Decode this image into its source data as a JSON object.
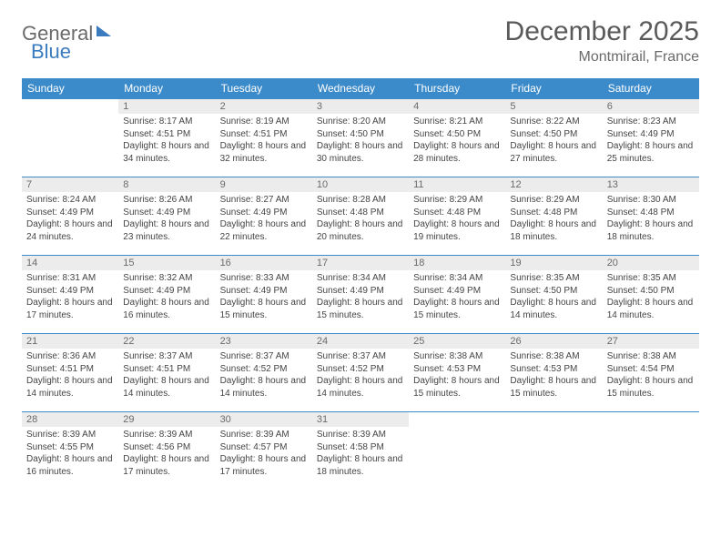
{
  "brand": {
    "part1": "General",
    "part2": "Blue"
  },
  "title": "December 2025",
  "subtitle": "Montmirail, France",
  "colors": {
    "header_bg": "#3b8aca",
    "header_text": "#ffffff",
    "daynum_bg": "#ececec",
    "border": "#3b8aca",
    "title_color": "#5a5a5a",
    "text_color": "#444444"
  },
  "weekdays": [
    "Sunday",
    "Monday",
    "Tuesday",
    "Wednesday",
    "Thursday",
    "Friday",
    "Saturday"
  ],
  "weeks": [
    [
      {
        "n": "",
        "sr": "",
        "ss": "",
        "dl": "",
        "empty": true
      },
      {
        "n": "1",
        "sr": "Sunrise: 8:17 AM",
        "ss": "Sunset: 4:51 PM",
        "dl": "Daylight: 8 hours and 34 minutes."
      },
      {
        "n": "2",
        "sr": "Sunrise: 8:19 AM",
        "ss": "Sunset: 4:51 PM",
        "dl": "Daylight: 8 hours and 32 minutes."
      },
      {
        "n": "3",
        "sr": "Sunrise: 8:20 AM",
        "ss": "Sunset: 4:50 PM",
        "dl": "Daylight: 8 hours and 30 minutes."
      },
      {
        "n": "4",
        "sr": "Sunrise: 8:21 AM",
        "ss": "Sunset: 4:50 PM",
        "dl": "Daylight: 8 hours and 28 minutes."
      },
      {
        "n": "5",
        "sr": "Sunrise: 8:22 AM",
        "ss": "Sunset: 4:50 PM",
        "dl": "Daylight: 8 hours and 27 minutes."
      },
      {
        "n": "6",
        "sr": "Sunrise: 8:23 AM",
        "ss": "Sunset: 4:49 PM",
        "dl": "Daylight: 8 hours and 25 minutes."
      }
    ],
    [
      {
        "n": "7",
        "sr": "Sunrise: 8:24 AM",
        "ss": "Sunset: 4:49 PM",
        "dl": "Daylight: 8 hours and 24 minutes."
      },
      {
        "n": "8",
        "sr": "Sunrise: 8:26 AM",
        "ss": "Sunset: 4:49 PM",
        "dl": "Daylight: 8 hours and 23 minutes."
      },
      {
        "n": "9",
        "sr": "Sunrise: 8:27 AM",
        "ss": "Sunset: 4:49 PM",
        "dl": "Daylight: 8 hours and 22 minutes."
      },
      {
        "n": "10",
        "sr": "Sunrise: 8:28 AM",
        "ss": "Sunset: 4:48 PM",
        "dl": "Daylight: 8 hours and 20 minutes."
      },
      {
        "n": "11",
        "sr": "Sunrise: 8:29 AM",
        "ss": "Sunset: 4:48 PM",
        "dl": "Daylight: 8 hours and 19 minutes."
      },
      {
        "n": "12",
        "sr": "Sunrise: 8:29 AM",
        "ss": "Sunset: 4:48 PM",
        "dl": "Daylight: 8 hours and 18 minutes."
      },
      {
        "n": "13",
        "sr": "Sunrise: 8:30 AM",
        "ss": "Sunset: 4:48 PM",
        "dl": "Daylight: 8 hours and 18 minutes."
      }
    ],
    [
      {
        "n": "14",
        "sr": "Sunrise: 8:31 AM",
        "ss": "Sunset: 4:49 PM",
        "dl": "Daylight: 8 hours and 17 minutes."
      },
      {
        "n": "15",
        "sr": "Sunrise: 8:32 AM",
        "ss": "Sunset: 4:49 PM",
        "dl": "Daylight: 8 hours and 16 minutes."
      },
      {
        "n": "16",
        "sr": "Sunrise: 8:33 AM",
        "ss": "Sunset: 4:49 PM",
        "dl": "Daylight: 8 hours and 15 minutes."
      },
      {
        "n": "17",
        "sr": "Sunrise: 8:34 AM",
        "ss": "Sunset: 4:49 PM",
        "dl": "Daylight: 8 hours and 15 minutes."
      },
      {
        "n": "18",
        "sr": "Sunrise: 8:34 AM",
        "ss": "Sunset: 4:49 PM",
        "dl": "Daylight: 8 hours and 15 minutes."
      },
      {
        "n": "19",
        "sr": "Sunrise: 8:35 AM",
        "ss": "Sunset: 4:50 PM",
        "dl": "Daylight: 8 hours and 14 minutes."
      },
      {
        "n": "20",
        "sr": "Sunrise: 8:35 AM",
        "ss": "Sunset: 4:50 PM",
        "dl": "Daylight: 8 hours and 14 minutes."
      }
    ],
    [
      {
        "n": "21",
        "sr": "Sunrise: 8:36 AM",
        "ss": "Sunset: 4:51 PM",
        "dl": "Daylight: 8 hours and 14 minutes."
      },
      {
        "n": "22",
        "sr": "Sunrise: 8:37 AM",
        "ss": "Sunset: 4:51 PM",
        "dl": "Daylight: 8 hours and 14 minutes."
      },
      {
        "n": "23",
        "sr": "Sunrise: 8:37 AM",
        "ss": "Sunset: 4:52 PM",
        "dl": "Daylight: 8 hours and 14 minutes."
      },
      {
        "n": "24",
        "sr": "Sunrise: 8:37 AM",
        "ss": "Sunset: 4:52 PM",
        "dl": "Daylight: 8 hours and 14 minutes."
      },
      {
        "n": "25",
        "sr": "Sunrise: 8:38 AM",
        "ss": "Sunset: 4:53 PM",
        "dl": "Daylight: 8 hours and 15 minutes."
      },
      {
        "n": "26",
        "sr": "Sunrise: 8:38 AM",
        "ss": "Sunset: 4:53 PM",
        "dl": "Daylight: 8 hours and 15 minutes."
      },
      {
        "n": "27",
        "sr": "Sunrise: 8:38 AM",
        "ss": "Sunset: 4:54 PM",
        "dl": "Daylight: 8 hours and 15 minutes."
      }
    ],
    [
      {
        "n": "28",
        "sr": "Sunrise: 8:39 AM",
        "ss": "Sunset: 4:55 PM",
        "dl": "Daylight: 8 hours and 16 minutes."
      },
      {
        "n": "29",
        "sr": "Sunrise: 8:39 AM",
        "ss": "Sunset: 4:56 PM",
        "dl": "Daylight: 8 hours and 17 minutes."
      },
      {
        "n": "30",
        "sr": "Sunrise: 8:39 AM",
        "ss": "Sunset: 4:57 PM",
        "dl": "Daylight: 8 hours and 17 minutes."
      },
      {
        "n": "31",
        "sr": "Sunrise: 8:39 AM",
        "ss": "Sunset: 4:58 PM",
        "dl": "Daylight: 8 hours and 18 minutes."
      },
      {
        "n": "",
        "sr": "",
        "ss": "",
        "dl": "",
        "empty": true
      },
      {
        "n": "",
        "sr": "",
        "ss": "",
        "dl": "",
        "empty": true
      },
      {
        "n": "",
        "sr": "",
        "ss": "",
        "dl": "",
        "empty": true
      }
    ]
  ]
}
